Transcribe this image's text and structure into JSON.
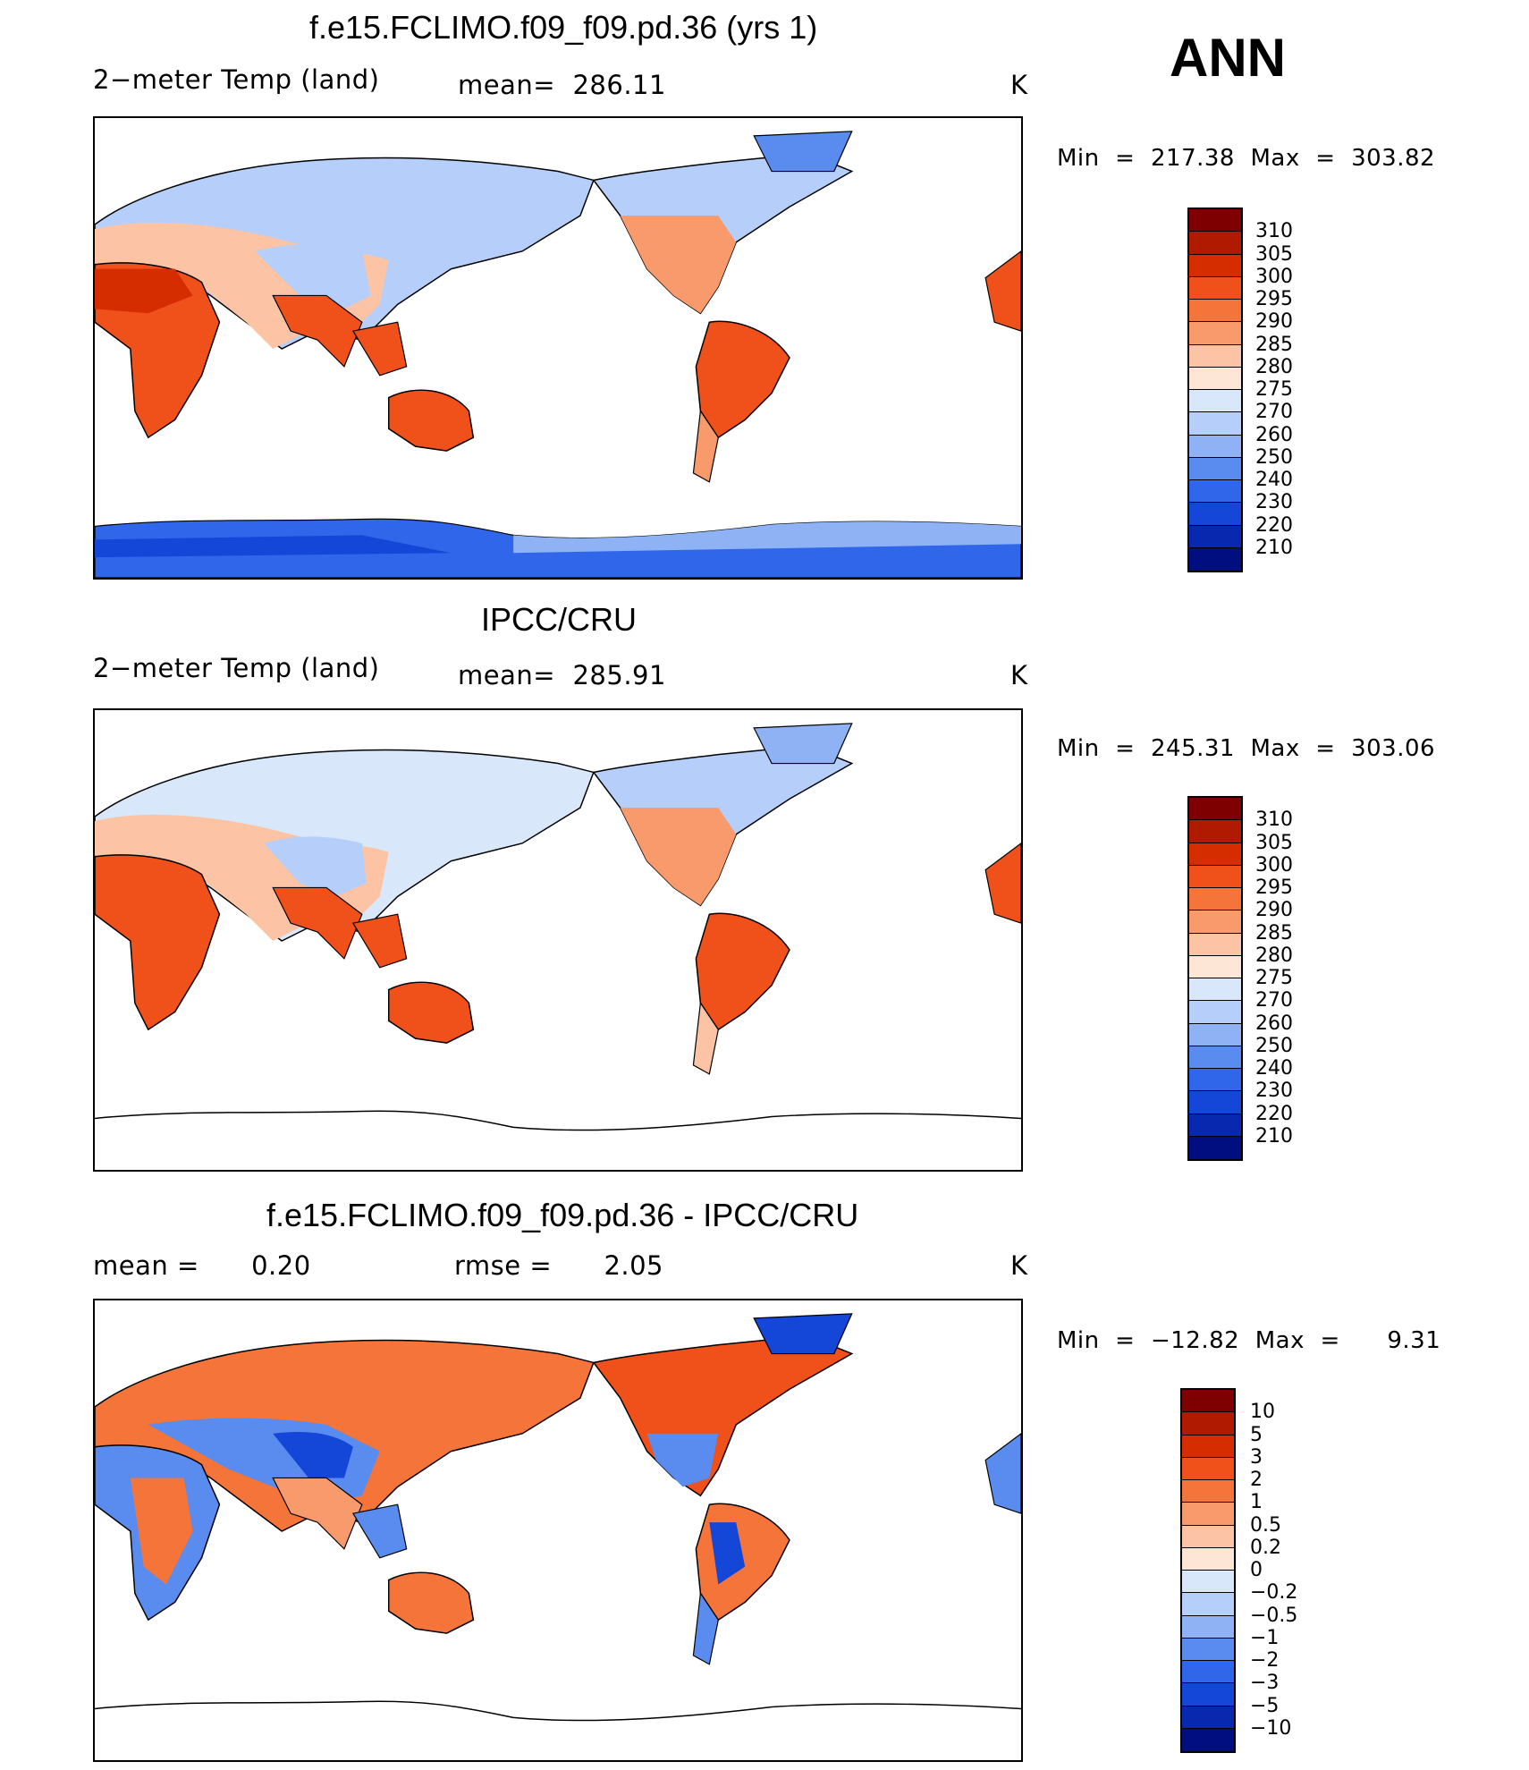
{
  "season": "ANN",
  "units": "K",
  "panels": [
    {
      "title": "f.e15.FCLIMO.f09_f09.pd.36 (yrs 1)",
      "left_label": "2−meter Temp (land)",
      "stat1": "mean=  286.11",
      "stat2": "",
      "minmax": "Min  =  217.38  Max  =  303.82",
      "colorbar_type": "abs"
    },
    {
      "title": "IPCC/CRU",
      "left_label": "2−meter Temp (land)",
      "stat1": "mean=  285.91",
      "stat2": "",
      "minmax": "Min  =  245.31  Max  =  303.06",
      "colorbar_type": "abs"
    },
    {
      "title": "f.e15.FCLIMO.f09_f09.pd.36 - IPCC/CRU",
      "left_label": "mean =      0.20",
      "stat1": "",
      "stat2": "rmse =      2.05",
      "minmax": "Min  =  −12.82  Max  =      9.31",
      "colorbar_type": "diff"
    }
  ],
  "colorbars": {
    "abs": {
      "labels": [
        "310",
        "305",
        "300",
        "295",
        "290",
        "285",
        "280",
        "275",
        "270",
        "260",
        "250",
        "240",
        "230",
        "220",
        "210"
      ],
      "colors": [
        "#7f0000",
        "#b01a00",
        "#d52c00",
        "#f0501a",
        "#f5743a",
        "#f99a6c",
        "#fcc4a4",
        "#fde6d6",
        "#d8e8fa",
        "#b6cffa",
        "#8fb2f5",
        "#5a8cef",
        "#2f66ea",
        "#1446d8",
        "#0828b0",
        "#000e80"
      ]
    },
    "diff": {
      "labels": [
        "10",
        "5",
        "3",
        "2",
        "1",
        "0.5",
        "0.2",
        "0",
        "−0.2",
        "−0.5",
        "−1",
        "−2",
        "−3",
        "−5",
        "−10"
      ],
      "colors": [
        "#7f0000",
        "#b01a00",
        "#d52c00",
        "#f0501a",
        "#f5743a",
        "#f99a6c",
        "#fcc4a4",
        "#fde6d6",
        "#d8e8fa",
        "#b6cffa",
        "#8fb2f5",
        "#5a8cef",
        "#2f66ea",
        "#1446d8",
        "#0828b0",
        "#000e80"
      ]
    }
  }
}
